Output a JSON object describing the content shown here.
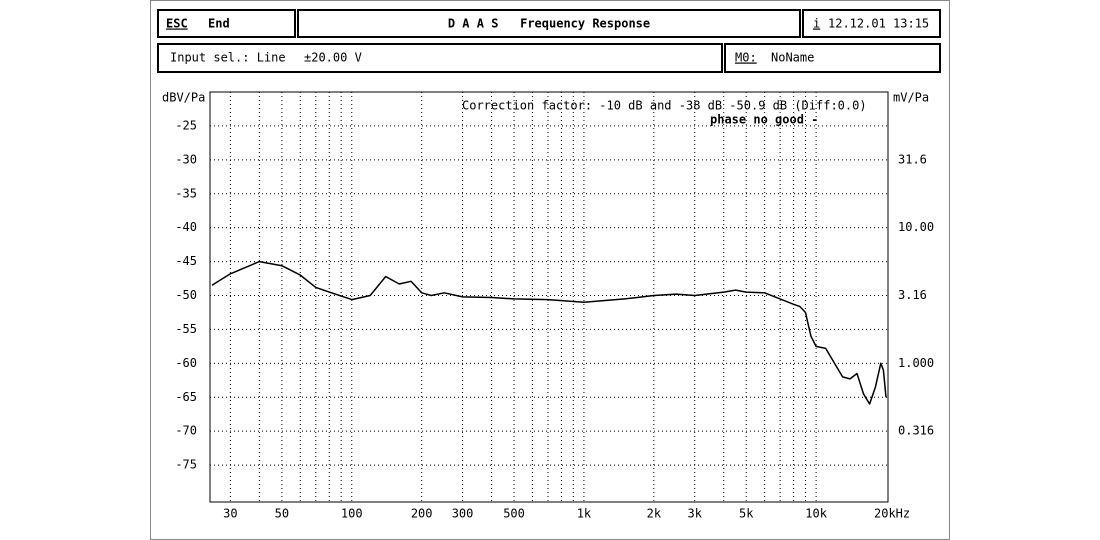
{
  "header": {
    "esc": "ESC",
    "end": "End",
    "title": "D A A S   Frequency Response",
    "info_key": "i",
    "datetime": "12.12.01 13:15"
  },
  "input": {
    "label": "Input sel.: Line",
    "range": "±20.00 V"
  },
  "memory": {
    "key": "M0:",
    "name": "NoName"
  },
  "chart_data": {
    "type": "line",
    "ylabel": "dBV/Pa",
    "y2label": "mV/Pa",
    "annotations": [
      "Correction factor: -10 dB and -38 dB -50.9 dB (Diff:0.0)",
      "phase no good -"
    ],
    "x": [
      25,
      30,
      40,
      50,
      60,
      70,
      80,
      100,
      120,
      140,
      160,
      180,
      200,
      220,
      250,
      300,
      400,
      500,
      700,
      1000,
      1500,
      2000,
      2500,
      3000,
      4000,
      4500,
      5000,
      6000,
      7000,
      8000,
      8500,
      9000,
      9500,
      10000,
      11000,
      12000,
      13000,
      14000,
      15000,
      16000,
      17000,
      18000,
      19000,
      19500,
      20000
    ],
    "values": [
      -48.5,
      -46.8,
      -45,
      -45.6,
      -47,
      -48.8,
      -49.5,
      -50.6,
      -50,
      -47.2,
      -48.3,
      -47.9,
      -49.6,
      -50,
      -49.6,
      -50.2,
      -50.3,
      -50.5,
      -50.6,
      -51,
      -50.5,
      -50,
      -49.8,
      -50,
      -49.5,
      -49.2,
      -49.5,
      -49.6,
      -50.5,
      -51.3,
      -51.6,
      -52.5,
      -56,
      -57.5,
      -57.8,
      -60,
      -62,
      -62.3,
      -61.5,
      -64.5,
      -66,
      -63.5,
      -60,
      -61,
      -65
    ],
    "color": "#000000",
    "xscale": "log",
    "xlim": [
      25,
      20000
    ],
    "xticks": [
      30,
      50,
      100,
      200,
      300,
      500,
      {
        "value": 1000,
        "label": "1k"
      },
      {
        "value": 2000,
        "label": "2k"
      },
      {
        "value": 3000,
        "label": "3k"
      },
      {
        "value": 5000,
        "label": "5k"
      },
      {
        "value": 10000,
        "label": "10k"
      },
      {
        "value": 20000,
        "label": "20kHz"
      }
    ],
    "xgrid": [
      30,
      40,
      50,
      60,
      70,
      80,
      90,
      100,
      200,
      300,
      400,
      500,
      600,
      700,
      800,
      900,
      1000,
      2000,
      3000,
      4000,
      5000,
      6000,
      7000,
      8000,
      9000,
      10000
    ],
    "ylim": [
      -80,
      -20
    ],
    "yticks": [
      -25,
      -30,
      -35,
      -40,
      -45,
      -50,
      -55,
      -60,
      -65,
      -70,
      -75
    ],
    "y2scale": "log",
    "y2lim": [
      0.1,
      100
    ],
    "y2ticks": [
      31.6,
      {
        "value": 10,
        "label": "10.00"
      },
      3.16,
      {
        "value": 1,
        "label": "1.000"
      },
      0.316
    ],
    "grid": true
  }
}
